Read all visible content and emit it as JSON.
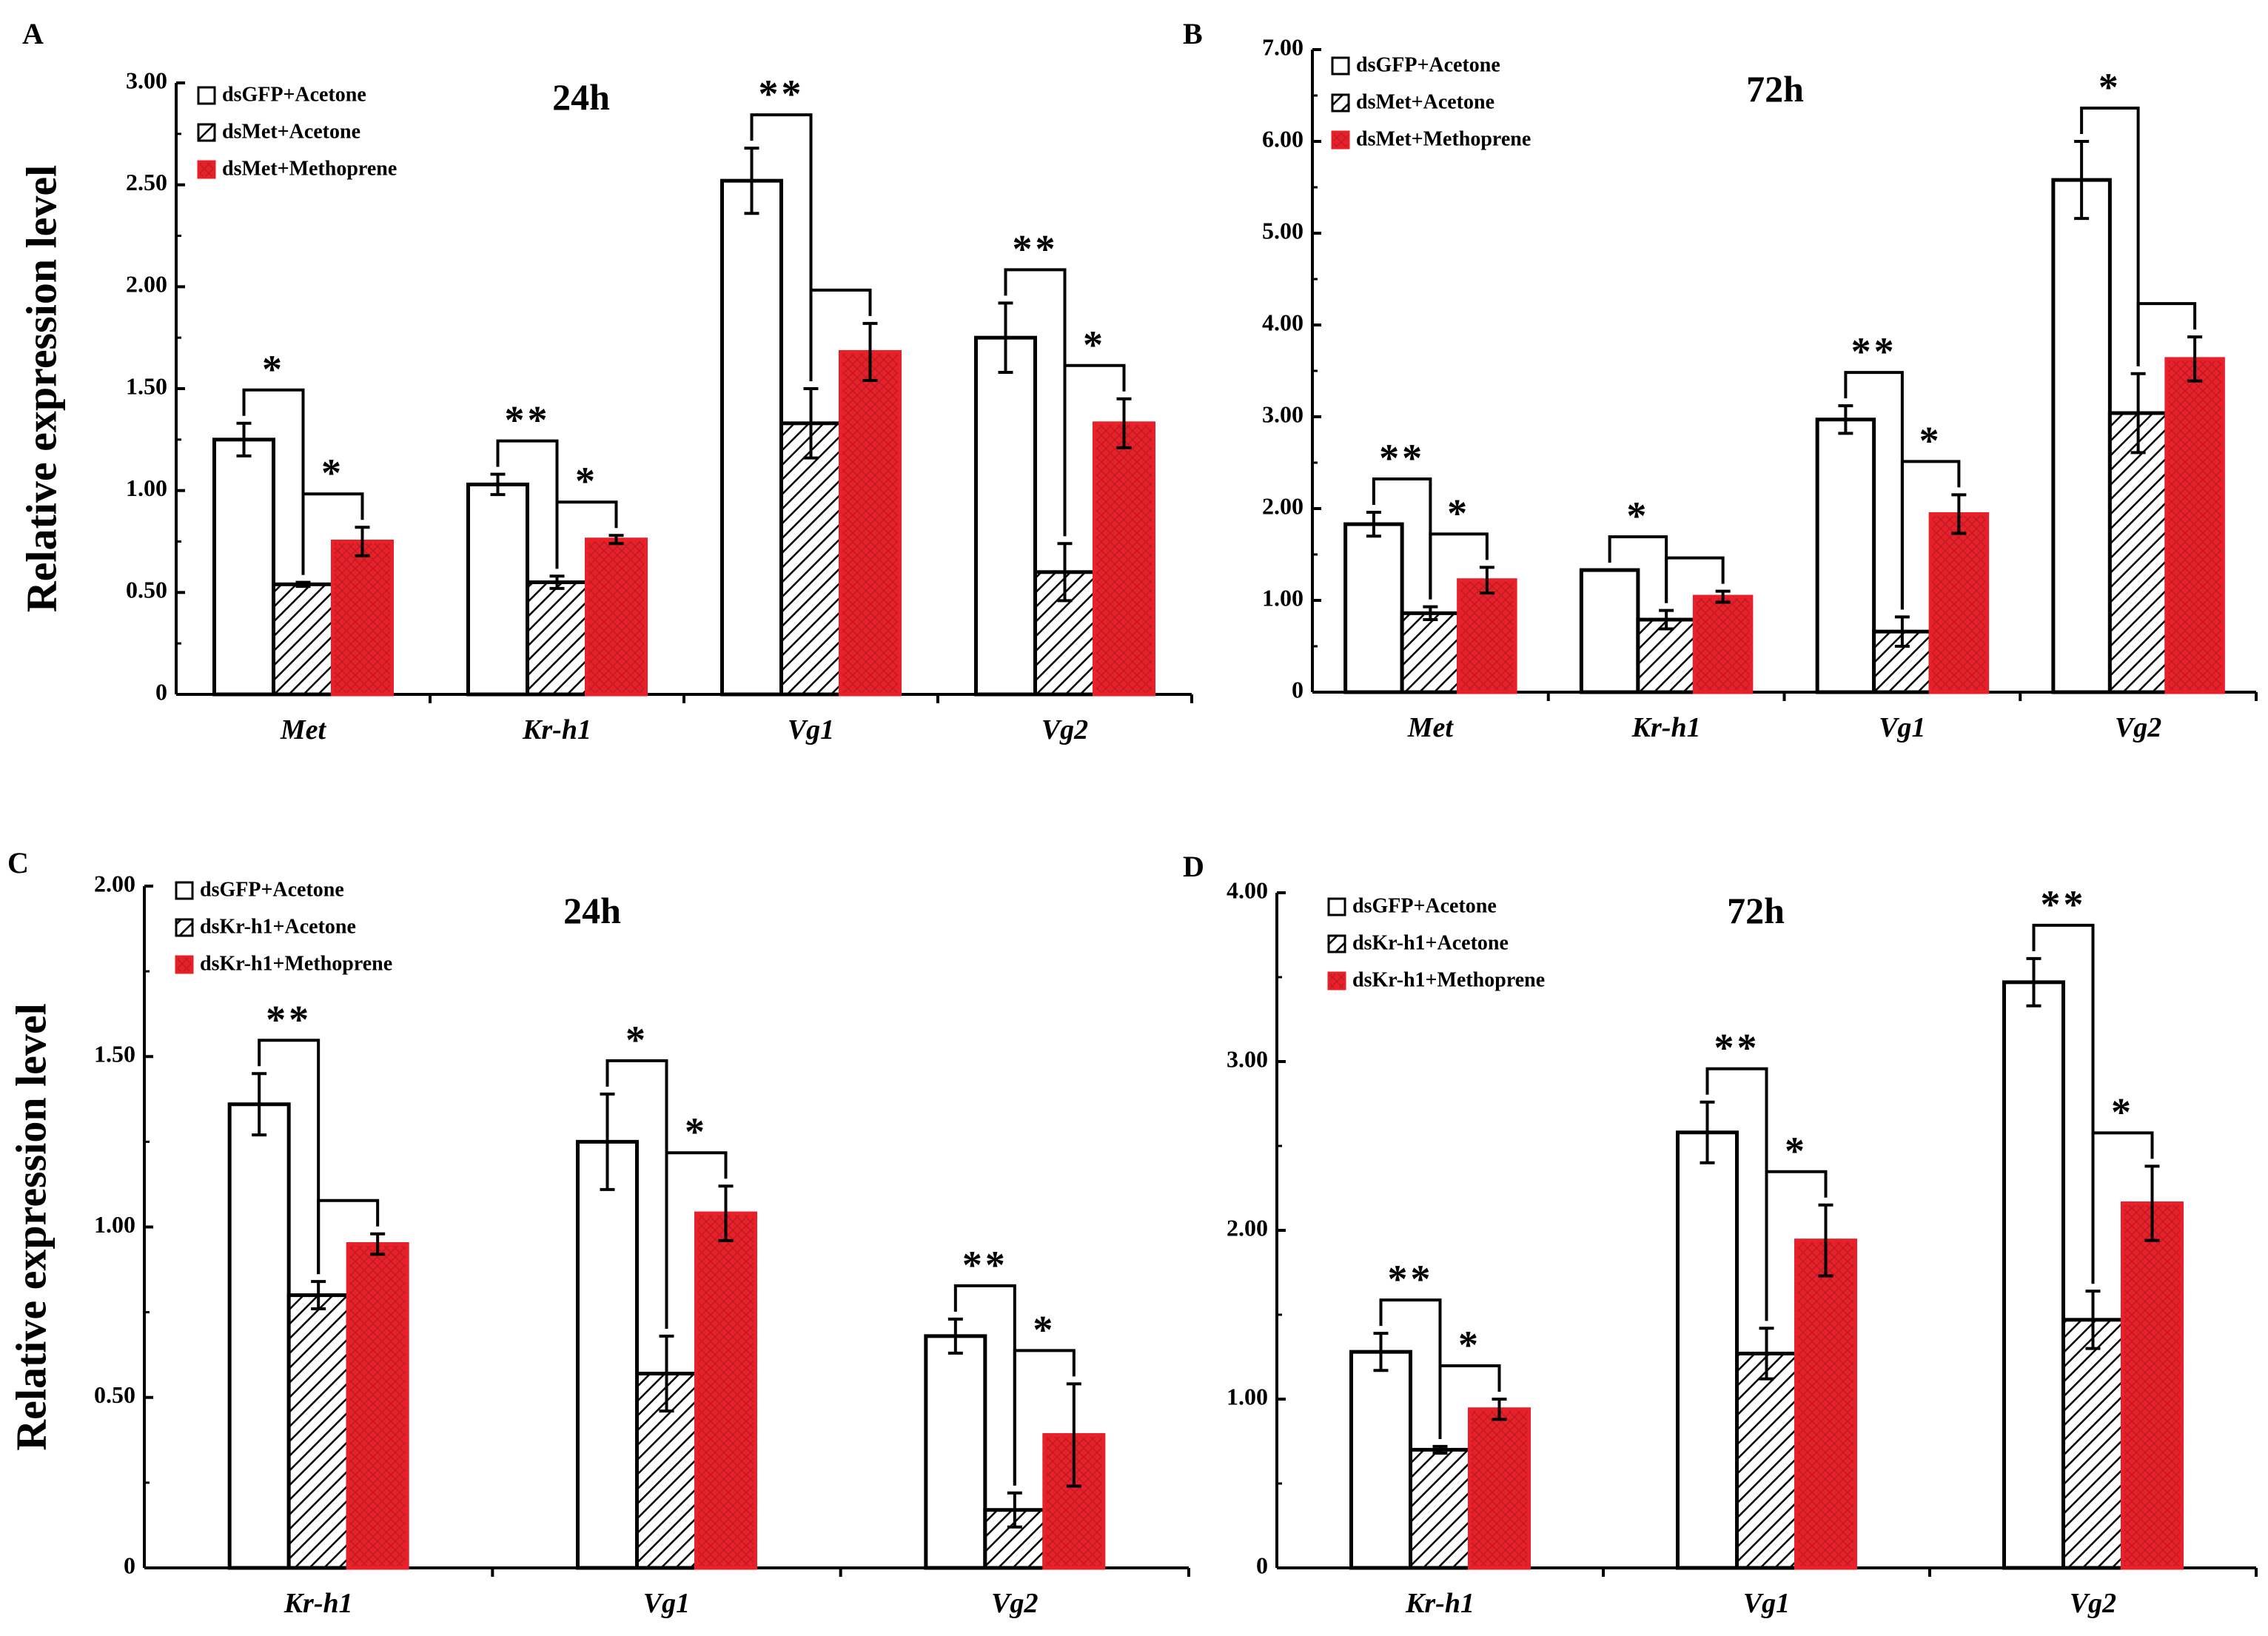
{
  "figure": {
    "ylabel": "Relative expression level"
  },
  "colors": {
    "axis": "#000000",
    "bar_fill_plain": "#ffffff",
    "bar_fill_hatch": "#ffffff",
    "bar_fill_red": "#e8202a",
    "bar_stroke_red": "#e8202a",
    "hatch_line": "#000000"
  },
  "chart_data": [
    {
      "panel": "A",
      "type": "bar",
      "title": "24h",
      "ylabel": "Relative expression level",
      "xlabel": "",
      "ylim": [
        0,
        3
      ],
      "yticks": [
        "0",
        "0.50",
        "1.00",
        "1.50",
        "2.00",
        "2.50",
        "3.00"
      ],
      "ytick_values": [
        0,
        0.5,
        1,
        1.5,
        2,
        2.5,
        3
      ],
      "categories": [
        "Met",
        "Kr-h1",
        "Vg1",
        "Vg2"
      ],
      "legend_position": "top-left",
      "series": [
        {
          "name": "dsGFP+Acetone",
          "style": "plain",
          "values": [
            1.25,
            1.03,
            2.52,
            1.75
          ],
          "errors": [
            0.08,
            0.05,
            0.16,
            0.17
          ]
        },
        {
          "name": "dsMet+Acetone",
          "style": "hatch",
          "values": [
            0.54,
            0.55,
            1.33,
            0.6
          ],
          "errors": [
            0.01,
            0.03,
            0.17,
            0.14
          ]
        },
        {
          "name": "dsMet+Methoprene",
          "style": "red",
          "values": [
            0.75,
            0.76,
            1.68,
            1.33
          ],
          "errors": [
            0.07,
            0.02,
            0.14,
            0.12
          ]
        }
      ],
      "significance": [
        {
          "category": 0,
          "from": 0,
          "to": 1,
          "label": "*"
        },
        {
          "category": 0,
          "from": 1,
          "to": 2,
          "label": "*"
        },
        {
          "category": 1,
          "from": 0,
          "to": 1,
          "label": "**"
        },
        {
          "category": 1,
          "from": 1,
          "to": 2,
          "label": "*"
        },
        {
          "category": 2,
          "from": 0,
          "to": 1,
          "label": "**"
        },
        {
          "category": 2,
          "from": 1,
          "to": 2,
          "label": ""
        },
        {
          "category": 3,
          "from": 0,
          "to": 1,
          "label": "**"
        },
        {
          "category": 3,
          "from": 1,
          "to": 2,
          "label": "*"
        }
      ]
    },
    {
      "panel": "B",
      "type": "bar",
      "title": "72h",
      "ylabel": "",
      "xlabel": "",
      "ylim": [
        0,
        7
      ],
      "yticks": [
        "0",
        "1.00",
        "2.00",
        "3.00",
        "4.00",
        "5.00",
        "6.00",
        "7.00"
      ],
      "ytick_values": [
        0,
        1,
        2,
        3,
        4,
        5,
        6,
        7
      ],
      "categories": [
        "Met",
        "Kr-h1",
        "Vg1",
        "Vg2"
      ],
      "legend_position": "top-left",
      "series": [
        {
          "name": "dsGFP+Acetone",
          "style": "plain",
          "values": [
            1.83,
            1.33,
            2.97,
            5.58
          ],
          "errors": [
            0.13,
            0.0,
            0.15,
            0.42
          ]
        },
        {
          "name": "dsMet+Acetone",
          "style": "hatch",
          "values": [
            0.86,
            0.79,
            0.66,
            3.04
          ],
          "errors": [
            0.07,
            0.1,
            0.16,
            0.43
          ]
        },
        {
          "name": "dsMet+Methoprene",
          "style": "red",
          "values": [
            1.22,
            1.04,
            1.94,
            3.63
          ],
          "errors": [
            0.14,
            0.06,
            0.21,
            0.24
          ]
        }
      ],
      "significance": [
        {
          "category": 0,
          "from": 0,
          "to": 1,
          "label": "**"
        },
        {
          "category": 0,
          "from": 1,
          "to": 2,
          "label": "*"
        },
        {
          "category": 1,
          "from": 0,
          "to": 1,
          "label": "*"
        },
        {
          "category": 1,
          "from": 1,
          "to": 2,
          "label": ""
        },
        {
          "category": 2,
          "from": 0,
          "to": 1,
          "label": "**"
        },
        {
          "category": 2,
          "from": 1,
          "to": 2,
          "label": "*"
        },
        {
          "category": 3,
          "from": 0,
          "to": 1,
          "label": "*"
        },
        {
          "category": 3,
          "from": 1,
          "to": 2,
          "label": ""
        }
      ]
    },
    {
      "panel": "C",
      "type": "bar",
      "title": "24h",
      "ylabel": "Relative expression level",
      "xlabel": "",
      "ylim": [
        0,
        2
      ],
      "yticks": [
        "0",
        "0.50",
        "1.00",
        "1.50",
        "2.00"
      ],
      "ytick_values": [
        0,
        0.5,
        1,
        1.5,
        2
      ],
      "categories": [
        "Kr-h1",
        "Vg1",
        "Vg2"
      ],
      "legend_position": "top-left",
      "series": [
        {
          "name": "dsGFP+Acetone",
          "style": "plain",
          "values": [
            1.36,
            1.25,
            0.68
          ],
          "errors": [
            0.09,
            0.14,
            0.05
          ]
        },
        {
          "name": "dsKr-h1+Acetone",
          "style": "hatch",
          "values": [
            0.8,
            0.57,
            0.17
          ],
          "errors": [
            0.04,
            0.11,
            0.05
          ]
        },
        {
          "name": "dsKr-h1+Methoprene",
          "style": "red",
          "values": [
            0.95,
            1.04,
            0.39
          ],
          "errors": [
            0.03,
            0.08,
            0.15
          ]
        }
      ],
      "significance": [
        {
          "category": 0,
          "from": 0,
          "to": 1,
          "label": "**"
        },
        {
          "category": 0,
          "from": 1,
          "to": 2,
          "label": ""
        },
        {
          "category": 1,
          "from": 0,
          "to": 1,
          "label": "*"
        },
        {
          "category": 1,
          "from": 1,
          "to": 2,
          "label": "*"
        },
        {
          "category": 2,
          "from": 0,
          "to": 1,
          "label": "**"
        },
        {
          "category": 2,
          "from": 1,
          "to": 2,
          "label": "*"
        }
      ]
    },
    {
      "panel": "D",
      "type": "bar",
      "title": "72h",
      "ylabel": "",
      "xlabel": "",
      "ylim": [
        0,
        4
      ],
      "yticks": [
        "0",
        "1.00",
        "2.00",
        "3.00",
        "4.00"
      ],
      "ytick_values": [
        0,
        1,
        2,
        3,
        4
      ],
      "categories": [
        "Kr-h1",
        "Vg1",
        "Vg2"
      ],
      "legend_position": "top-left",
      "series": [
        {
          "name": "dsGFP+Acetone",
          "style": "plain",
          "values": [
            1.28,
            2.58,
            3.47
          ],
          "errors": [
            0.11,
            0.18,
            0.14
          ]
        },
        {
          "name": "dsKr-h1+Acetone",
          "style": "hatch",
          "values": [
            0.7,
            1.27,
            1.47
          ],
          "errors": [
            0.02,
            0.15,
            0.17
          ]
        },
        {
          "name": "dsKr-h1+Methoprene",
          "style": "red",
          "values": [
            0.94,
            1.94,
            2.16
          ],
          "errors": [
            0.06,
            0.21,
            0.22
          ]
        }
      ],
      "significance": [
        {
          "category": 0,
          "from": 0,
          "to": 1,
          "label": "**"
        },
        {
          "category": 0,
          "from": 1,
          "to": 2,
          "label": "*"
        },
        {
          "category": 1,
          "from": 0,
          "to": 1,
          "label": "**"
        },
        {
          "category": 1,
          "from": 1,
          "to": 2,
          "label": "*"
        },
        {
          "category": 2,
          "from": 0,
          "to": 1,
          "label": "**"
        },
        {
          "category": 2,
          "from": 1,
          "to": 2,
          "label": "*"
        }
      ]
    }
  ]
}
